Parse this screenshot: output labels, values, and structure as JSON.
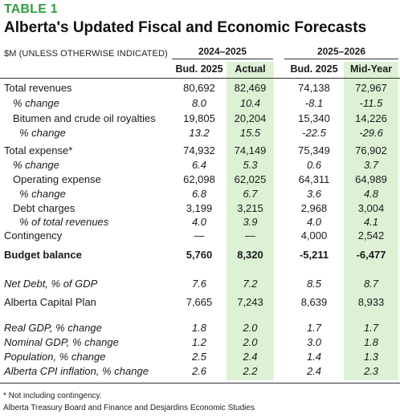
{
  "header": {
    "table_label": "TABLE 1",
    "title": "Alberta's Updated Fiscal and Economic Forecasts",
    "units": "$M (UNLESS OTHERWISE INDICATED)"
  },
  "columns": {
    "period_1": "2024–2025",
    "period_2": "2025–2026",
    "heads": [
      "Bud. 2025",
      "Actual",
      "Bud. 2025",
      "Mid-Year"
    ]
  },
  "rows": [
    {
      "label": "Total revenues",
      "values": [
        "80,692",
        "82,469",
        "74,138",
        "72,967"
      ]
    },
    {
      "label": "% change",
      "values": [
        "8.0",
        "10.4",
        "-8.1",
        "-11.5"
      ]
    },
    {
      "label": "Bitumen and crude oil royalties",
      "values": [
        "19,805",
        "20,204",
        "15,340",
        "14,226"
      ]
    },
    {
      "label": "% change",
      "values": [
        "13.2",
        "15.5",
        "-22.5",
        "-29.6"
      ]
    },
    {
      "label": "Total expense*",
      "values": [
        "74,932",
        "74,149",
        "75,349",
        "76,902"
      ]
    },
    {
      "label": "% change",
      "values": [
        "6.4",
        "5.3",
        "0.6",
        "3.7"
      ]
    },
    {
      "label": "Operating expense",
      "values": [
        "62,098",
        "62,025",
        "64,311",
        "64,989"
      ]
    },
    {
      "label": "% change",
      "values": [
        "6.8",
        "6.7",
        "3.6",
        "4.8"
      ]
    },
    {
      "label": "Debt charges",
      "values": [
        "3,199",
        "3,215",
        "2,968",
        "3,004"
      ]
    },
    {
      "label": "% of total revenues",
      "values": [
        "4.0",
        "3.9",
        "4.0",
        "4.1"
      ]
    },
    {
      "label": "Contingency",
      "values": [
        "—",
        "—",
        "4,000",
        "2,542"
      ]
    },
    {
      "label": "Budget balance",
      "values": [
        "5,760",
        "8,320",
        "-5,211",
        "-6,477"
      ]
    },
    {
      "label": "Net Debt, % of GDP",
      "values": [
        "7.6",
        "7.2",
        "8.5",
        "8.7"
      ]
    },
    {
      "label": "Alberta Capital Plan",
      "values": [
        "7,665",
        "7,243",
        "8,639",
        "8,933"
      ]
    },
    {
      "label": "Real GDP, % change",
      "values": [
        "1.8",
        "2.0",
        "1.7",
        "1.7"
      ]
    },
    {
      "label": "Nominal GDP, % change",
      "values": [
        "1.2",
        "2.0",
        "3.0",
        "1.8"
      ]
    },
    {
      "label": "Population, % change",
      "values": [
        "2.5",
        "2.4",
        "1.4",
        "1.3"
      ]
    },
    {
      "label": "Alberta CPI inflation, % change",
      "values": [
        "2.6",
        "2.2",
        "2.4",
        "2.3"
      ]
    }
  ],
  "footnotes": {
    "note": "* Not including contingency.",
    "source": "Alberta Treasury Board and Finance and Desjardins Economic Studies"
  }
}
